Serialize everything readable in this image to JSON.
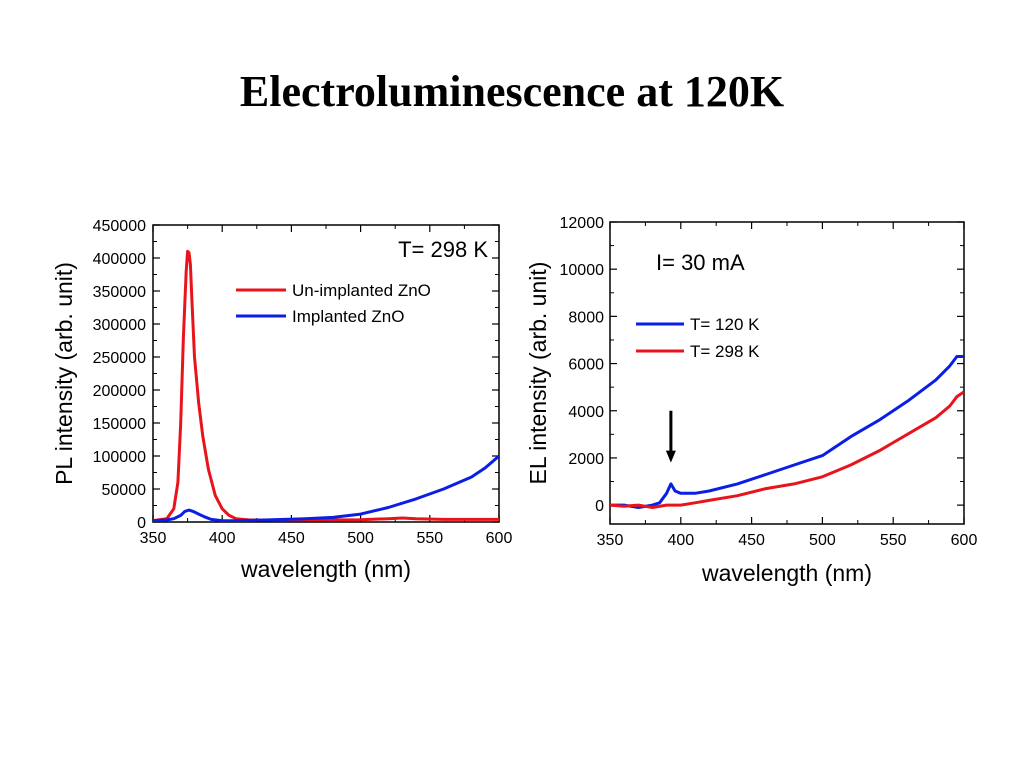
{
  "title": "Electroluminescence at 120K",
  "chart_data": [
    {
      "type": "line",
      "xlabel": "wavelength (nm)",
      "ylabel": "PL intensity (arb. unit)",
      "xlim": [
        350,
        600
      ],
      "ylim": [
        0,
        450000
      ],
      "xticks": [
        350,
        400,
        450,
        500,
        550,
        600
      ],
      "yticks": [
        0,
        50000,
        100000,
        150000,
        200000,
        250000,
        300000,
        350000,
        400000,
        450000
      ],
      "xtick_labels": [
        "350",
        "400",
        "450",
        "500",
        "550",
        "600"
      ],
      "ytick_labels": [
        "0",
        "50000",
        "100000",
        "150000",
        "200000",
        "250000",
        "300000",
        "350000",
        "400000",
        "450000"
      ],
      "annotation": "T= 298 K",
      "legend_position": "top-right",
      "series": [
        {
          "name": "Un-implanted ZnO",
          "color": "#e8141c",
          "x": [
            350,
            360,
            365,
            368,
            370,
            372,
            374,
            375,
            376,
            377,
            378,
            380,
            383,
            386,
            390,
            395,
            400,
            405,
            410,
            420,
            450,
            500,
            520,
            530,
            540,
            560,
            580,
            600
          ],
          "y": [
            2000,
            5000,
            20000,
            60000,
            150000,
            280000,
            380000,
            410000,
            408000,
            390000,
            340000,
            250000,
            180000,
            130000,
            80000,
            40000,
            20000,
            10000,
            5000,
            3000,
            3000,
            3500,
            5000,
            6000,
            5000,
            4000,
            4000,
            4000
          ]
        },
        {
          "name": "Implanted ZnO",
          "color": "#0a1ee6",
          "x": [
            350,
            360,
            365,
            370,
            373,
            376,
            379,
            383,
            387,
            392,
            400,
            410,
            430,
            460,
            480,
            500,
            520,
            540,
            560,
            580,
            590,
            600
          ],
          "y": [
            2000,
            3000,
            5000,
            10000,
            16000,
            18000,
            16000,
            12000,
            8000,
            4000,
            2000,
            2000,
            3000,
            5000,
            7000,
            12000,
            22000,
            35000,
            50000,
            68000,
            82000,
            100000
          ]
        }
      ]
    },
    {
      "type": "line",
      "xlabel": "wavelength (nm)",
      "ylabel": "EL intensity (arb. unit)",
      "xlim": [
        350,
        600
      ],
      "ylim": [
        -800,
        12000
      ],
      "xticks": [
        350,
        400,
        450,
        500,
        550,
        600
      ],
      "yticks": [
        0,
        2000,
        4000,
        6000,
        8000,
        10000,
        12000
      ],
      "xtick_labels": [
        "350",
        "400",
        "450",
        "500",
        "550",
        "600"
      ],
      "ytick_labels": [
        "0",
        "2000",
        "4000",
        "6000",
        "8000",
        "10000",
        "12000"
      ],
      "annotation": "I= 30 mA",
      "arrow_at": {
        "x": 393,
        "y_from": 4000,
        "y_to": 1800
      },
      "legend_position": "middle-left",
      "series": [
        {
          "name": "T= 120 K",
          "color": "#0a1ee6",
          "x": [
            350,
            360,
            370,
            380,
            385,
            390,
            393,
            396,
            400,
            410,
            420,
            440,
            460,
            480,
            500,
            520,
            540,
            560,
            580,
            590,
            595,
            600
          ],
          "y": [
            0,
            0,
            -100,
            0,
            100,
            500,
            900,
            600,
            500,
            500,
            600,
            900,
            1300,
            1700,
            2100,
            2900,
            3600,
            4400,
            5300,
            5900,
            6300,
            6300
          ]
        },
        {
          "name": "T= 298 K",
          "color": "#e8141c",
          "x": [
            350,
            360,
            370,
            380,
            390,
            400,
            410,
            420,
            440,
            460,
            480,
            500,
            520,
            540,
            560,
            580,
            590,
            595,
            600
          ],
          "y": [
            0,
            -50,
            0,
            -100,
            0,
            0,
            100,
            200,
            400,
            700,
            900,
            1200,
            1700,
            2300,
            3000,
            3700,
            4200,
            4600,
            4800
          ]
        }
      ]
    }
  ]
}
